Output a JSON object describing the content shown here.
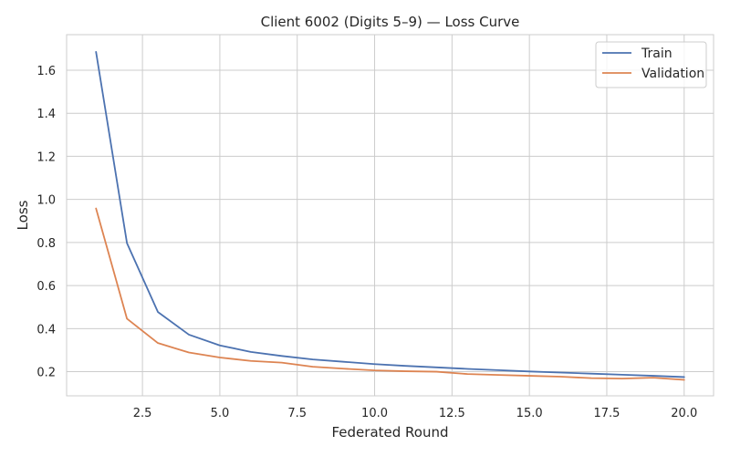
{
  "chart_data": {
    "type": "line",
    "title": "Client 6002 (Digits 5–9) — Loss Curve",
    "xlabel": "Federated Round",
    "ylabel": "Loss",
    "xlim": [
      0.05,
      20.95
    ],
    "ylim": [
      0.088,
      1.765
    ],
    "xticks": [
      2.5,
      5.0,
      7.5,
      10.0,
      12.5,
      15.0,
      17.5,
      20.0
    ],
    "xtick_labels": [
      "2.5",
      "5.0",
      "7.5",
      "10.0",
      "12.5",
      "15.0",
      "17.5",
      "20.0"
    ],
    "yticks": [
      0.2,
      0.4,
      0.6,
      0.8,
      1.0,
      1.2,
      1.4,
      1.6
    ],
    "ytick_labels": [
      "0.2",
      "0.4",
      "0.6",
      "0.8",
      "1.0",
      "1.2",
      "1.4",
      "1.6"
    ],
    "grid": true,
    "legend_position": "top-right",
    "x": [
      1,
      2,
      3,
      4,
      5,
      6,
      7,
      8,
      9,
      10,
      11,
      12,
      13,
      14,
      15,
      16,
      17,
      18,
      19,
      20
    ],
    "series": [
      {
        "name": "Train",
        "color": "#4c72b0",
        "values": [
          1.685,
          0.797,
          0.477,
          0.372,
          0.322,
          0.292,
          0.273,
          0.257,
          0.246,
          0.235,
          0.227,
          0.22,
          0.213,
          0.207,
          0.201,
          0.196,
          0.191,
          0.186,
          0.181,
          0.175
        ]
      },
      {
        "name": "Validation",
        "color": "#dd8452",
        "values": [
          0.958,
          0.446,
          0.333,
          0.289,
          0.266,
          0.25,
          0.242,
          0.223,
          0.214,
          0.206,
          0.202,
          0.2,
          0.189,
          0.185,
          0.181,
          0.177,
          0.17,
          0.168,
          0.172,
          0.162
        ]
      }
    ]
  }
}
